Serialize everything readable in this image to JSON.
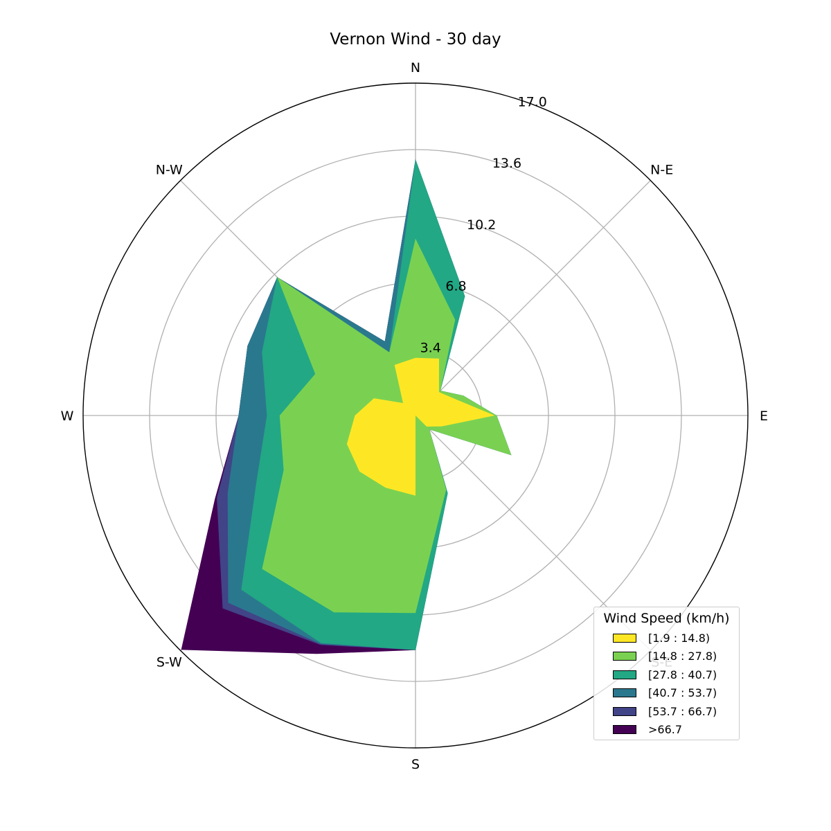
{
  "chart_data": {
    "type": "area",
    "subtype": "polar windrose (filled, stacked)",
    "title": "Vernon Wind - 30 day",
    "direction_labels": [
      "N",
      "N-E",
      "E",
      "S-E",
      "S",
      "S-W",
      "W",
      "N-W"
    ],
    "radial_ticks": [
      "3.4",
      "6.8",
      "10.2",
      "13.6",
      "17.0"
    ],
    "r_max": 17.0,
    "grid": true,
    "legend_title": "Wind Speed (km/h)",
    "legend_position": "lower-right",
    "angles_deg": [
      0,
      22.5,
      45,
      67.5,
      90,
      112.5,
      135,
      157.5,
      180,
      202.5,
      225,
      247.5,
      270,
      292.5,
      315,
      337.5
    ],
    "series": [
      {
        "name": "[1.9 : 14.8)",
        "color": "#fde725",
        "cumulative": [
          2.95,
          3.15,
          1.7,
          2.2,
          4.05,
          1.45,
          0.8,
          0.0,
          4.1,
          4.0,
          4.05,
          3.8,
          3.1,
          2.3,
          0.9,
          2.8
        ]
      },
      {
        "name": "[14.8 : 27.8)",
        "color": "#7ad151",
        "cumulative": [
          9.05,
          5.3,
          1.8,
          2.65,
          4.15,
          5.3,
          1.0,
          4.1,
          10.1,
          10.9,
          11.1,
          7.3,
          6.95,
          5.55,
          10.0,
          3.5
        ]
      },
      {
        "name": "[27.8 : 40.7)",
        "color": "#22a884",
        "cumulative": [
          13.1,
          6.6,
          1.8,
          2.65,
          4.15,
          5.3,
          1.0,
          4.3,
          12.0,
          12.6,
          12.6,
          8.8,
          7.6,
          8.5,
          10.0,
          3.5
        ]
      },
      {
        "name": "[40.7 : 53.7)",
        "color": "#2a788e",
        "cumulative": [
          13.1,
          6.6,
          1.8,
          2.65,
          4.15,
          5.3,
          1.0,
          4.3,
          12.0,
          12.65,
          13.55,
          10.4,
          9.05,
          9.3,
          10.0,
          4.1
        ]
      },
      {
        "name": "[53.7 : 66.7)",
        "color": "#414487",
        "cumulative": [
          13.1,
          6.6,
          1.8,
          2.65,
          4.15,
          5.3,
          1.0,
          4.3,
          12.0,
          12.7,
          13.95,
          11.0,
          9.05,
          9.3,
          10.0,
          4.1
        ]
      },
      {
        "name": ">66.7",
        "color": "#440154",
        "cumulative": [
          13.1,
          6.6,
          1.8,
          2.65,
          4.15,
          5.3,
          1.0,
          4.3,
          12.0,
          13.2,
          16.95,
          11.1,
          9.05,
          9.3,
          10.0,
          4.1
        ]
      }
    ]
  }
}
